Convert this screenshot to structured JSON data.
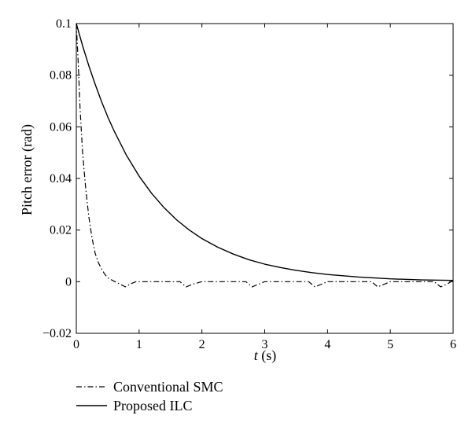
{
  "chart_data": {
    "type": "line",
    "title": "",
    "ylabel": "Pitch error (rad)",
    "xlabel_italic": "t",
    "xlabel_rest": " (s)",
    "xlim": [
      0,
      6
    ],
    "ylim": [
      -0.02,
      0.1
    ],
    "xticks": [
      0,
      1,
      2,
      3,
      4,
      5,
      6
    ],
    "yticks": [
      -0.02,
      0,
      0.02,
      0.04,
      0.06,
      0.08,
      0.1
    ],
    "xtick_labels": [
      "0",
      "1",
      "2",
      "3",
      "4",
      "5",
      "6"
    ],
    "ytick_labels": [
      "−0.02",
      "0",
      "0.02",
      "0.04",
      "0.06",
      "0.08",
      "0.1"
    ],
    "grid": false,
    "legend_position": "below-left",
    "series": [
      {
        "name": "Conventional SMC",
        "style": "dashdot",
        "x": [
          0,
          0.03,
          0.06,
          0.1,
          0.15,
          0.2,
          0.25,
          0.3,
          0.35,
          0.4,
          0.45,
          0.5,
          0.6,
          0.7,
          0.78,
          0.85,
          0.95,
          1.1,
          1.3,
          1.5,
          1.65,
          1.75,
          1.85,
          2.0,
          2.2,
          2.5,
          2.7,
          2.8,
          2.9,
          3.0,
          3.2,
          3.5,
          3.7,
          3.8,
          3.9,
          4.0,
          4.2,
          4.5,
          4.7,
          4.8,
          4.9,
          5.0,
          5.2,
          5.5,
          5.7,
          5.8,
          5.9,
          6.0
        ],
        "y": [
          0.1,
          0.085,
          0.067,
          0.05,
          0.036,
          0.025,
          0.017,
          0.011,
          0.0075,
          0.005,
          0.003,
          0.0015,
          0.0002,
          -0.001,
          -0.002,
          -0.001,
          0.0,
          0.0,
          0.0,
          0.0,
          0.0,
          -0.002,
          -0.001,
          0.0,
          0.0,
          0.0,
          0.0,
          -0.002,
          -0.001,
          0.0,
          0.0,
          0.0,
          0.0,
          -0.002,
          -0.001,
          0.0,
          0.0,
          0.0,
          0.0,
          -0.002,
          -0.001,
          0.0,
          0.0,
          0.0,
          0.0,
          -0.002,
          -0.001,
          0.0005
        ]
      },
      {
        "name": "Proposed ILC",
        "style": "solid",
        "x": [
          0,
          0.1,
          0.2,
          0.3,
          0.4,
          0.5,
          0.6,
          0.8,
          1.0,
          1.2,
          1.4,
          1.6,
          1.8,
          2.0,
          2.25,
          2.5,
          2.75,
          3.0,
          3.25,
          3.5,
          3.75,
          4.0,
          4.5,
          5.0,
          5.5,
          6.0
        ],
        "y": [
          0.1,
          0.0914,
          0.0836,
          0.0765,
          0.0699,
          0.0639,
          0.0585,
          0.0489,
          0.0409,
          0.0342,
          0.0286,
          0.0239,
          0.02,
          0.0167,
          0.0134,
          0.0107,
          0.0085,
          0.0068,
          0.0055,
          0.0044,
          0.0035,
          0.0028,
          0.0018,
          0.0011,
          0.0007,
          0.0005
        ]
      }
    ]
  }
}
